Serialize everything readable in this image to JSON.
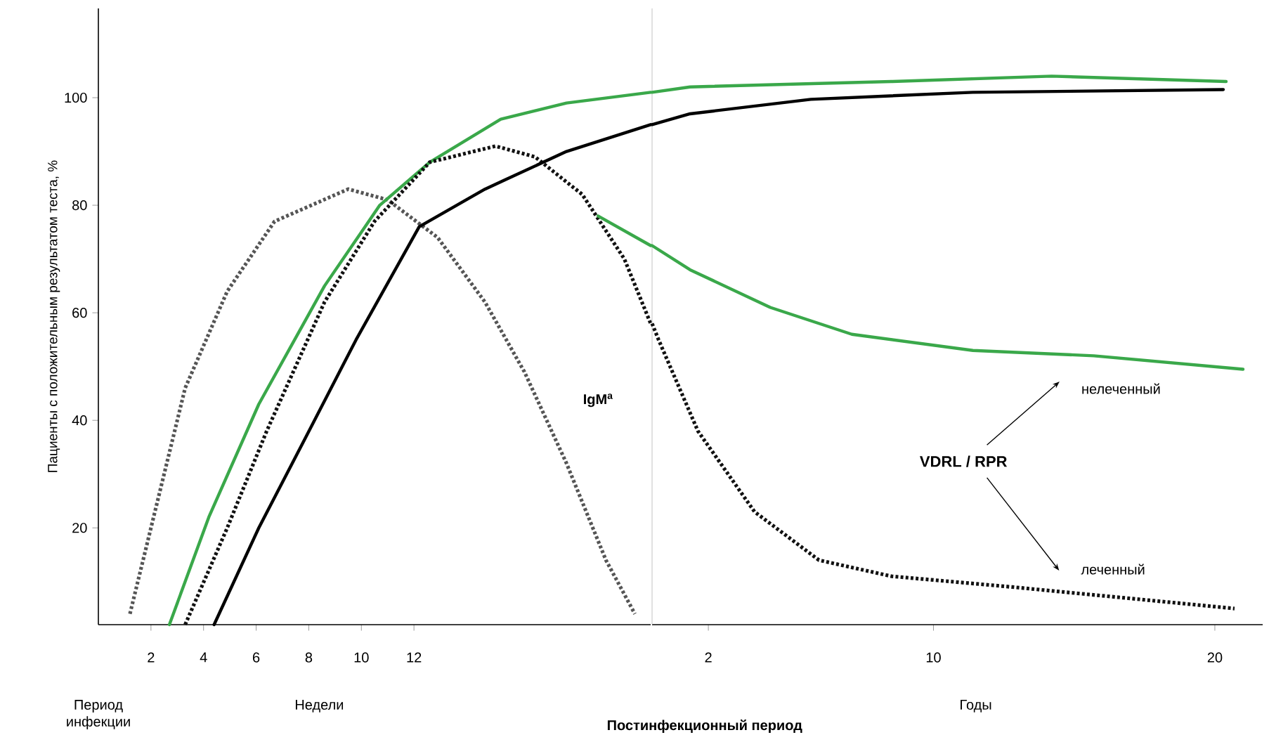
{
  "chart_data": [
    {
      "type": "line",
      "ylabel": "Пациенты с положительным результатом теста, %",
      "xlim": [
        0,
        21
      ],
      "ylim": [
        2,
        116.6
      ],
      "xticks": [
        2,
        4,
        6,
        8,
        10,
        12
      ],
      "yticks": [
        20,
        40,
        60,
        80,
        100
      ],
      "series": [
        {
          "color": "#555555",
          "line_style": "dotted",
          "x": [
            1.2,
            2.1,
            3.3,
            4.9,
            6.7,
            9.5,
            11.0,
            12.9,
            14.7,
            16.2,
            17.8,
            19.3,
            20.4
          ],
          "values": [
            4,
            22,
            46,
            64,
            77,
            83,
            81,
            74,
            62,
            49,
            32,
            14,
            4
          ]
        },
        {
          "color": "#3aa84a",
          "line_style": "solid",
          "x": [
            2.7,
            4.2,
            6.1,
            8.6,
            10.7,
            12.6,
            15.3,
            17.8,
            21.0
          ],
          "values": [
            2,
            22,
            43,
            65,
            80,
            88,
            96,
            99,
            101
          ]
        },
        {
          "color": "#111111",
          "line_style": "dotted",
          "x": [
            3.3,
            4.9,
            6.4,
            8.6,
            10.5,
            12.6,
            15.1,
            16.6,
            18.4,
            20.0,
            21.0
          ],
          "values": [
            2,
            20,
            38,
            62,
            77,
            88,
            91,
            89,
            82,
            70,
            58
          ]
        },
        {
          "color": "#000000",
          "line_style": "solid",
          "x": [
            4.4,
            6.1,
            7.9,
            9.8,
            12.2,
            14.7,
            17.8,
            21.0
          ],
          "values": [
            2,
            20,
            37,
            55,
            76,
            83,
            90,
            95
          ]
        },
        {
          "color": "#3aa84a",
          "line_style": "solid",
          "x": [
            19.0,
            21.0
          ],
          "values": [
            78,
            72.5
          ]
        }
      ],
      "annotations": [
        "Период инфекции",
        "Недели",
        "IgM$^{a}$"
      ]
    },
    {
      "type": "line",
      "xlabel": "Постинфекционный период",
      "xlim": [
        0,
        21.7
      ],
      "ylim": [
        2,
        116.6
      ],
      "xticks": [
        2,
        10,
        20
      ],
      "tick_labels": "x",
      "series": [
        {
          "color": "#3aa84a",
          "line_style": "solid",
          "x": [
            0,
            1.35,
            8.5,
            14.2,
            20.4
          ],
          "values": [
            101,
            102,
            103,
            104,
            103
          ]
        },
        {
          "color": "#111111",
          "line_style": "dotted",
          "x": [
            0,
            0.23,
            1.63,
            3.64,
            5.93,
            8.51,
            12.8,
            20.7
          ],
          "values": [
            58,
            55,
            38,
            23,
            14,
            11,
            9,
            5
          ]
        },
        {
          "color": "#000000",
          "line_style": "solid",
          "x": [
            0,
            1.35,
            5.64,
            11.4,
            20.3
          ],
          "values": [
            95,
            97,
            99.7,
            101,
            101.5
          ]
        },
        {
          "color": "#3aa84a",
          "line_style": "solid",
          "x": [
            0,
            1.35,
            4.2,
            7.1,
            11.4,
            15.7,
            21.0
          ],
          "values": [
            72.5,
            68,
            61,
            56,
            53,
            52,
            49.5
          ]
        }
      ],
      "annotations": [
        "Годы",
        "VDRL / RPR",
        "нелеченный",
        "леченный"
      ]
    }
  ]
}
